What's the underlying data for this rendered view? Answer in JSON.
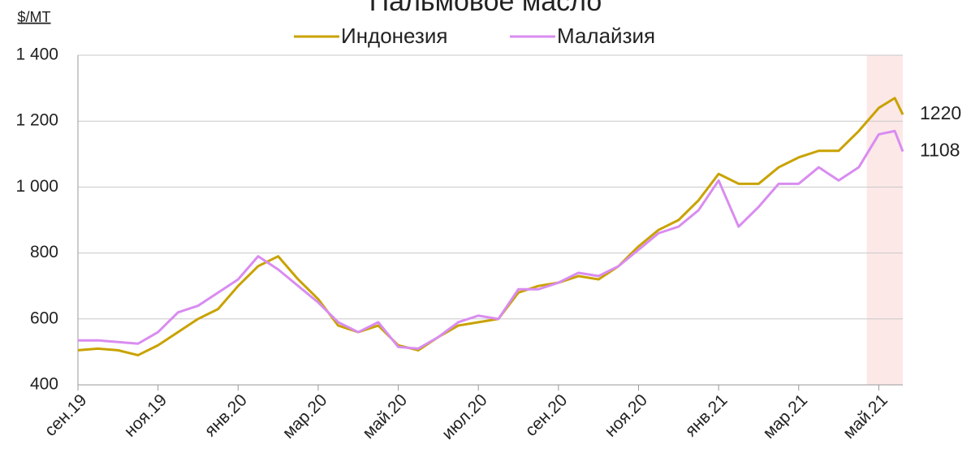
{
  "chart_data": {
    "type": "line",
    "title": "Пальмовое масло",
    "y_label": "$/MT",
    "x": [
      0,
      0.5,
      1,
      1.5,
      2,
      2.5,
      3,
      3.5,
      4,
      4.5,
      5,
      5.5,
      6,
      6.5,
      7,
      7.5,
      8,
      8.5,
      9,
      9.5,
      10,
      10.5,
      11,
      11.5,
      12,
      12.5,
      13,
      13.5,
      14,
      14.5,
      15,
      15.5,
      16,
      16.5,
      17,
      17.5,
      18,
      18.5,
      19,
      19.5,
      20,
      20.4,
      20.6
    ],
    "xlim": [
      0,
      20.6
    ],
    "xticks": [
      {
        "value": 0,
        "label": "сен.19"
      },
      {
        "value": 2,
        "label": "ноя.19"
      },
      {
        "value": 4,
        "label": "янв.20"
      },
      {
        "value": 6,
        "label": "мар.20"
      },
      {
        "value": 8,
        "label": "май.20"
      },
      {
        "value": 10,
        "label": "июл.20"
      },
      {
        "value": 12,
        "label": "сен.20"
      },
      {
        "value": 14,
        "label": "ноя.20"
      },
      {
        "value": 16,
        "label": "янв.21"
      },
      {
        "value": 18,
        "label": "мар.21"
      },
      {
        "value": 20,
        "label": "май.21"
      }
    ],
    "ylim": [
      400,
      1400
    ],
    "yticks": [
      400,
      600,
      800,
      {
        "value": 1000,
        "label": "1 000"
      },
      {
        "value": 1200,
        "label": "1 200"
      },
      {
        "value": 1400,
        "label": "1 400"
      }
    ],
    "grid": true,
    "highlight": {
      "xlim": [
        19.7,
        20.6
      ],
      "color": "#fde8e8"
    },
    "series": [
      {
        "name": "Индонезия",
        "color": "#c9a200",
        "end_value": 1220,
        "values": [
          505,
          510,
          505,
          490,
          520,
          560,
          600,
          630,
          700,
          760,
          790,
          720,
          660,
          580,
          560,
          580,
          520,
          505,
          545,
          580,
          590,
          600,
          680,
          700,
          710,
          730,
          720,
          760,
          820,
          870,
          900,
          960,
          1040,
          1010,
          1010,
          1060,
          1090,
          1110,
          1110,
          1170,
          1240,
          1270,
          1220
        ]
      },
      {
        "name": "Малайзия",
        "color": "#d98cf0",
        "end_value": 1108,
        "values": [
          535,
          535,
          530,
          525,
          560,
          620,
          640,
          680,
          720,
          790,
          750,
          700,
          650,
          590,
          560,
          590,
          515,
          510,
          545,
          590,
          610,
          600,
          690,
          690,
          710,
          740,
          730,
          760,
          810,
          860,
          880,
          930,
          1020,
          880,
          940,
          1010,
          1010,
          1060,
          1020,
          1060,
          1160,
          1170,
          1108
        ]
      }
    ]
  }
}
